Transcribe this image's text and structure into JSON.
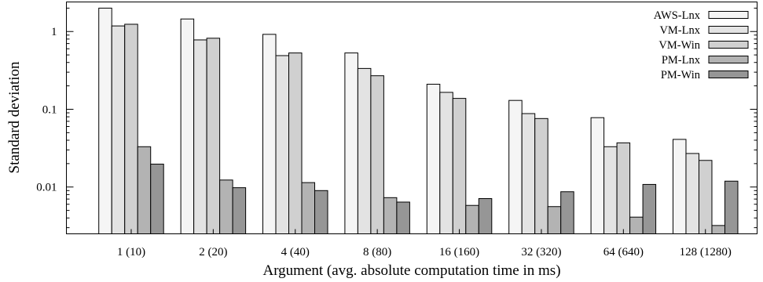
{
  "chart_data": {
    "type": "bar",
    "title": "",
    "xlabel": "Argument (avg. absolute computation time in ms)",
    "ylabel": "Standard deviation",
    "yscale": "log",
    "ylim": [
      0.0025,
      2.4
    ],
    "y_ticks": [
      {
        "value": 0.01,
        "label": "0.01"
      },
      {
        "value": 0.1,
        "label": "0.1"
      },
      {
        "value": 1,
        "label": "1"
      }
    ],
    "categories": [
      "1 (10)",
      "2 (20)",
      "4 (40)",
      "8 (80)",
      "16 (160)",
      "32 (320)",
      "64 (640)",
      "128 (1280)"
    ],
    "legend_position": "top-right",
    "grid": false,
    "series": [
      {
        "name": "AWS-Lnx",
        "color": "#f5f5f5",
        "values": [
          2.0,
          1.45,
          0.92,
          0.53,
          0.21,
          0.13,
          0.078,
          0.041
        ]
      },
      {
        "name": "VM-Lnx",
        "color": "#e3e3e3",
        "values": [
          1.18,
          0.78,
          0.49,
          0.335,
          0.165,
          0.088,
          0.033,
          0.027
        ]
      },
      {
        "name": "VM-Win",
        "color": "#d0d0d0",
        "values": [
          1.24,
          0.82,
          0.53,
          0.27,
          0.138,
          0.076,
          0.037,
          0.022
        ]
      },
      {
        "name": "PM-Lnx",
        "color": "#b3b3b3",
        "values": [
          0.033,
          0.0123,
          0.0114,
          0.0073,
          0.0058,
          0.0056,
          0.0041,
          0.0032
        ]
      },
      {
        "name": "PM-Win",
        "color": "#969696",
        "values": [
          0.0197,
          0.0098,
          0.009,
          0.0064,
          0.0071,
          0.0087,
          0.0108,
          0.0119
        ]
      }
    ]
  }
}
